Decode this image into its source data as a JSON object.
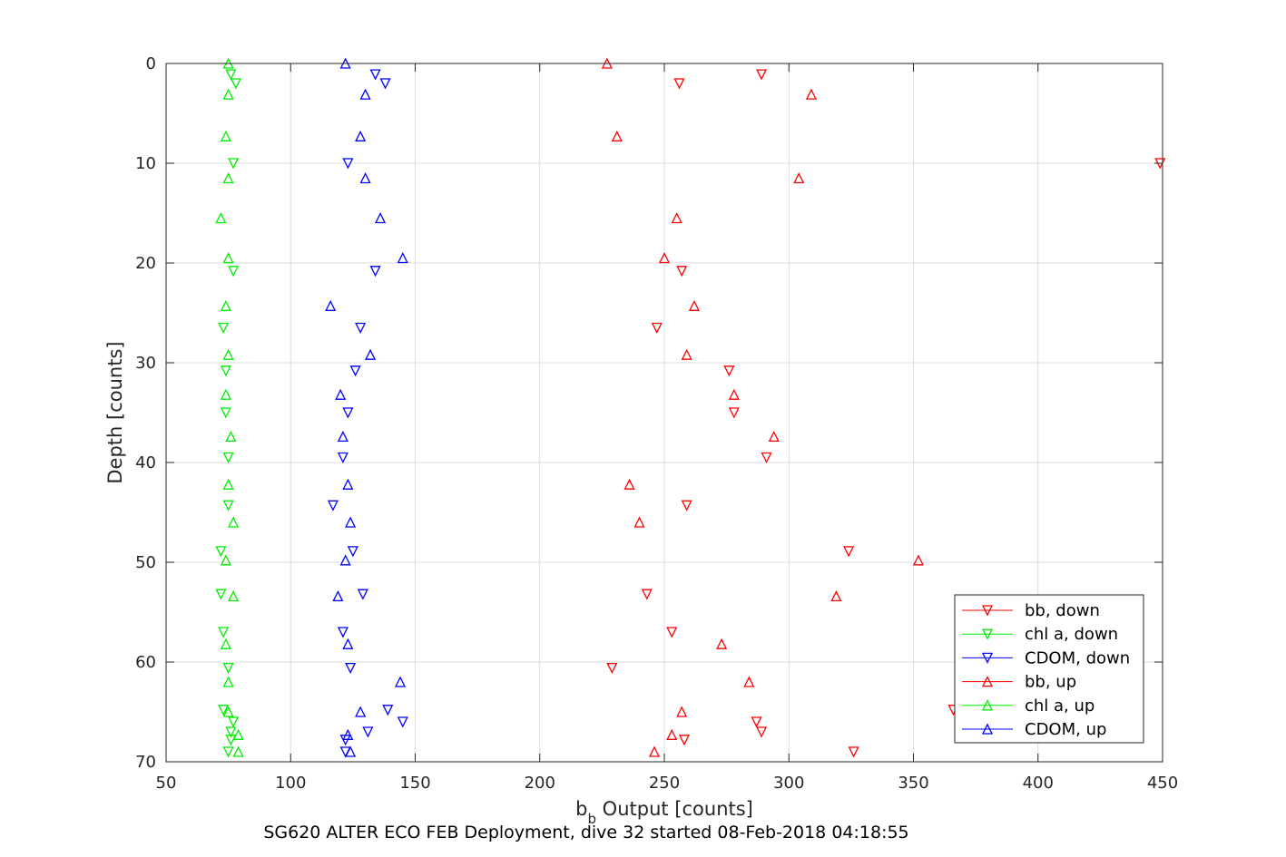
{
  "chart_data": {
    "type": "scatter",
    "title": "",
    "xlabel_main": "b",
    "xlabel_sub": "b",
    "xlabel_rest": " Output [counts]",
    "ylabel": "Depth [counts]",
    "footer": "SG620 ALTER ECO FEB Deployment, dive 32 started 08-Feb-2018 04:18:55",
    "xlim": [
      50,
      450
    ],
    "ylim": [
      0,
      70
    ],
    "y_reversed": true,
    "xticks": [
      50,
      100,
      150,
      200,
      250,
      300,
      350,
      400,
      450
    ],
    "yticks": [
      0,
      10,
      20,
      30,
      40,
      50,
      60,
      70
    ],
    "grid": true,
    "legend_position": "bottom-right",
    "series": [
      {
        "name": "bb, down",
        "color": "#ff0000",
        "marker": "triangle-down",
        "points": [
          [
            289,
            1.1
          ],
          [
            256,
            2.0
          ],
          [
            449,
            10.0
          ],
          [
            257,
            20.8
          ],
          [
            247,
            26.5
          ],
          [
            276,
            30.8
          ],
          [
            278,
            35.0
          ],
          [
            291,
            39.5
          ],
          [
            259,
            44.3
          ],
          [
            324,
            48.9
          ],
          [
            243,
            53.2
          ],
          [
            253,
            57.0
          ],
          [
            229,
            60.6
          ],
          [
            366,
            64.8
          ],
          [
            287,
            66.0
          ],
          [
            289,
            67.0
          ],
          [
            258,
            67.8
          ],
          [
            326,
            69.0
          ]
        ]
      },
      {
        "name": "chl a, down",
        "color": "#00ee00",
        "marker": "triangle-down",
        "points": [
          [
            76,
            1.1
          ],
          [
            78,
            2.0
          ],
          [
            77,
            10.0
          ],
          [
            77,
            20.8
          ],
          [
            73,
            26.5
          ],
          [
            74,
            30.8
          ],
          [
            74,
            35.0
          ],
          [
            75,
            39.5
          ],
          [
            75,
            44.3
          ],
          [
            72,
            48.9
          ],
          [
            72,
            53.2
          ],
          [
            73,
            57.0
          ],
          [
            75,
            60.6
          ],
          [
            73,
            64.8
          ],
          [
            77,
            66.0
          ],
          [
            76,
            67.0
          ],
          [
            76,
            67.8
          ],
          [
            75,
            69.0
          ]
        ]
      },
      {
        "name": "CDOM, down",
        "color": "#0000ff",
        "marker": "triangle-down",
        "points": [
          [
            134,
            1.1
          ],
          [
            138,
            2.0
          ],
          [
            123,
            10.0
          ],
          [
            134,
            20.8
          ],
          [
            128,
            26.5
          ],
          [
            126,
            30.8
          ],
          [
            123,
            35.0
          ],
          [
            121,
            39.5
          ],
          [
            117,
            44.3
          ],
          [
            125,
            48.9
          ],
          [
            129,
            53.2
          ],
          [
            121,
            57.0
          ],
          [
            124,
            60.6
          ],
          [
            139,
            64.8
          ],
          [
            145,
            66.0
          ],
          [
            131,
            67.0
          ],
          [
            122,
            67.8
          ],
          [
            122,
            69.0
          ]
        ]
      },
      {
        "name": "bb, up",
        "color": "#ff0000",
        "marker": "triangle-up",
        "points": [
          [
            227,
            0.0
          ],
          [
            309,
            3.1
          ],
          [
            231,
            7.3
          ],
          [
            304,
            11.5
          ],
          [
            255,
            15.5
          ],
          [
            250,
            19.5
          ],
          [
            262,
            24.3
          ],
          [
            259,
            29.2
          ],
          [
            278,
            33.2
          ],
          [
            294,
            37.4
          ],
          [
            236,
            42.2
          ],
          [
            240,
            46.0
          ],
          [
            352,
            49.8
          ],
          [
            319,
            53.4
          ],
          [
            273,
            58.2
          ],
          [
            284,
            62.0
          ],
          [
            257,
            65.0
          ],
          [
            253,
            67.3
          ],
          [
            246,
            69.0
          ]
        ]
      },
      {
        "name": "chl a, up",
        "color": "#00ee00",
        "marker": "triangle-up",
        "points": [
          [
            75,
            0.0
          ],
          [
            75,
            3.1
          ],
          [
            74,
            7.3
          ],
          [
            75,
            11.5
          ],
          [
            72,
            15.5
          ],
          [
            75,
            19.5
          ],
          [
            74,
            24.3
          ],
          [
            75,
            29.2
          ],
          [
            74,
            33.2
          ],
          [
            76,
            37.4
          ],
          [
            75,
            42.2
          ],
          [
            77,
            46.0
          ],
          [
            74,
            49.8
          ],
          [
            77,
            53.4
          ],
          [
            74,
            58.2
          ],
          [
            75,
            62.0
          ],
          [
            75,
            65.0
          ],
          [
            79,
            67.3
          ],
          [
            79,
            69.0
          ]
        ]
      },
      {
        "name": "CDOM, up",
        "color": "#0000ff",
        "marker": "triangle-up",
        "points": [
          [
            122,
            0.0
          ],
          [
            130,
            3.1
          ],
          [
            128,
            7.3
          ],
          [
            130,
            11.5
          ],
          [
            136,
            15.5
          ],
          [
            145,
            19.5
          ],
          [
            116,
            24.3
          ],
          [
            132,
            29.2
          ],
          [
            120,
            33.2
          ],
          [
            121,
            37.4
          ],
          [
            123,
            42.2
          ],
          [
            124,
            46.0
          ],
          [
            122,
            49.8
          ],
          [
            119,
            53.4
          ],
          [
            123,
            58.2
          ],
          [
            144,
            62.0
          ],
          [
            128,
            65.0
          ],
          [
            123,
            67.3
          ],
          [
            124,
            69.0
          ]
        ]
      }
    ]
  }
}
